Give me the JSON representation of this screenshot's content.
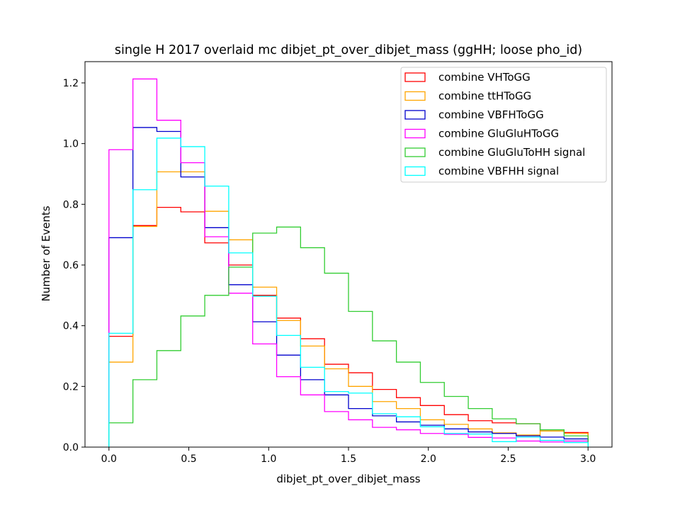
{
  "chart_data": {
    "type": "step",
    "title": "single H 2017 overlaid mc dibjet_pt_over_dibjet_mass (ggHH; loose pho_id)",
    "xlabel": "dibjet_pt_over_dibjet_mass",
    "ylabel": "Number of Events",
    "xlim": [
      -0.15,
      3.15
    ],
    "ylim": [
      0.0,
      1.27
    ],
    "xticks": [
      "0.0",
      "0.5",
      "1.0",
      "1.5",
      "2.0",
      "2.5",
      "3.0"
    ],
    "xtick_values": [
      0.0,
      0.5,
      1.0,
      1.5,
      2.0,
      2.5,
      3.0
    ],
    "yticks": [
      "0.0",
      "0.2",
      "0.4",
      "0.6",
      "0.8",
      "1.0",
      "1.2"
    ],
    "ytick_values": [
      0.0,
      0.2,
      0.4,
      0.6,
      0.8,
      1.0,
      1.2
    ],
    "grid": false,
    "legend_position": "top-right",
    "bin_edges": [
      0.0,
      0.15,
      0.3,
      0.45,
      0.6,
      0.75,
      0.9,
      1.05,
      1.2,
      1.35,
      1.5,
      1.65,
      1.8,
      1.95,
      2.1,
      2.25,
      2.4,
      2.55,
      2.7,
      2.85,
      3.0
    ],
    "series": [
      {
        "name": "combine VHToGG",
        "color": "#ff0000",
        "values": [
          0.365,
          0.73,
          0.79,
          0.775,
          0.673,
          0.6,
          0.5,
          0.425,
          0.357,
          0.273,
          0.245,
          0.19,
          0.163,
          0.137,
          0.107,
          0.087,
          0.08,
          0.077,
          0.053,
          0.048
        ]
      },
      {
        "name": "combine ttHToGG",
        "color": "#ffa500",
        "values": [
          0.28,
          0.727,
          0.907,
          0.907,
          0.777,
          0.683,
          0.527,
          0.417,
          0.333,
          0.258,
          0.2,
          0.15,
          0.127,
          0.09,
          0.075,
          0.06,
          0.047,
          0.04,
          0.053,
          0.045
        ]
      },
      {
        "name": "combine VBFHToGG",
        "color": "#0000cd",
        "values": [
          0.69,
          1.053,
          1.04,
          0.89,
          0.723,
          0.535,
          0.413,
          0.303,
          0.222,
          0.172,
          0.127,
          0.103,
          0.083,
          0.072,
          0.06,
          0.05,
          0.045,
          0.037,
          0.033,
          0.027
        ]
      },
      {
        "name": "combine GluGluHToGG",
        "color": "#ff00ff",
        "values": [
          0.98,
          1.213,
          1.077,
          0.937,
          0.693,
          0.507,
          0.34,
          0.232,
          0.172,
          0.117,
          0.09,
          0.065,
          0.057,
          0.045,
          0.042,
          0.032,
          0.03,
          0.02,
          0.017,
          0.02
        ]
      },
      {
        "name": "combine GluGluToHH signal",
        "color": "#32cd32",
        "values": [
          0.08,
          0.222,
          0.318,
          0.432,
          0.5,
          0.593,
          0.705,
          0.725,
          0.657,
          0.573,
          0.447,
          0.35,
          0.28,
          0.213,
          0.167,
          0.127,
          0.093,
          0.077,
          0.057,
          0.037
        ]
      },
      {
        "name": "combine VBFHH signal",
        "color": "#00ffff",
        "values": [
          0.375,
          0.848,
          1.018,
          0.99,
          0.86,
          0.64,
          0.497,
          0.368,
          0.263,
          0.183,
          0.178,
          0.11,
          0.1,
          0.067,
          0.045,
          0.043,
          0.018,
          0.033,
          0.022,
          0.015
        ]
      }
    ]
  }
}
